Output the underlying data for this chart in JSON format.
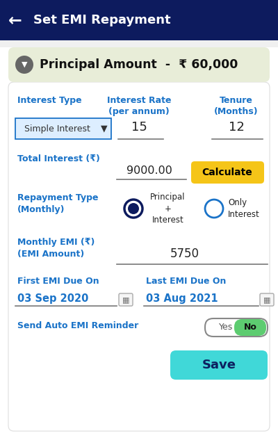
{
  "bg_color": "#ffffff",
  "header_bg": "#0d1b5e",
  "header_text": "Set EMI Repayment",
  "header_text_color": "#ffffff",
  "principal_bg": "#e8edd8",
  "principal_text": "Principal Amount  -  ₹ 60,000",
  "interest_type_label": "Interest Type",
  "interest_type_value": "Simple Interest",
  "interest_rate_label": "Interest Rate\n(per annum)",
  "interest_rate_value": "15",
  "tenure_label": "Tenure\n(Months)",
  "tenure_value": "12",
  "total_interest_label": "Total Interest (₹)",
  "total_interest_value": "9000.00",
  "calculate_btn_text": "Calculate",
  "calculate_btn_bg": "#f5c518",
  "calculate_btn_text_color": "#000000",
  "repayment_label": "Repayment Type\n(Monthly)",
  "radio1_label": "Principal\n+\nInterest",
  "radio2_label": "Only\nInterest",
  "monthly_emi_label": "Monthly EMI (₹)\n(EMI Amount)",
  "monthly_emi_value": "5750",
  "first_emi_label": "First EMI Due On",
  "first_emi_value": "03 Sep 2020",
  "last_emi_label": "Last EMI Due On",
  "last_emi_value": "03 Aug 2021",
  "reminder_label": "Send Auto EMI Reminder",
  "yes_text": "Yes",
  "no_text": "No",
  "save_btn_text": "Save",
  "save_btn_bg": "#40d8d8",
  "label_color": "#1a73c8",
  "value_color": "#222222",
  "dropdown_border": "#1a73c8",
  "input_line_color": "#777777",
  "radio_selected_color": "#0d1b5e",
  "radio_unselected_color": "#1a73c8",
  "card_bg": "#ffffff",
  "card_border": "#dddddd"
}
